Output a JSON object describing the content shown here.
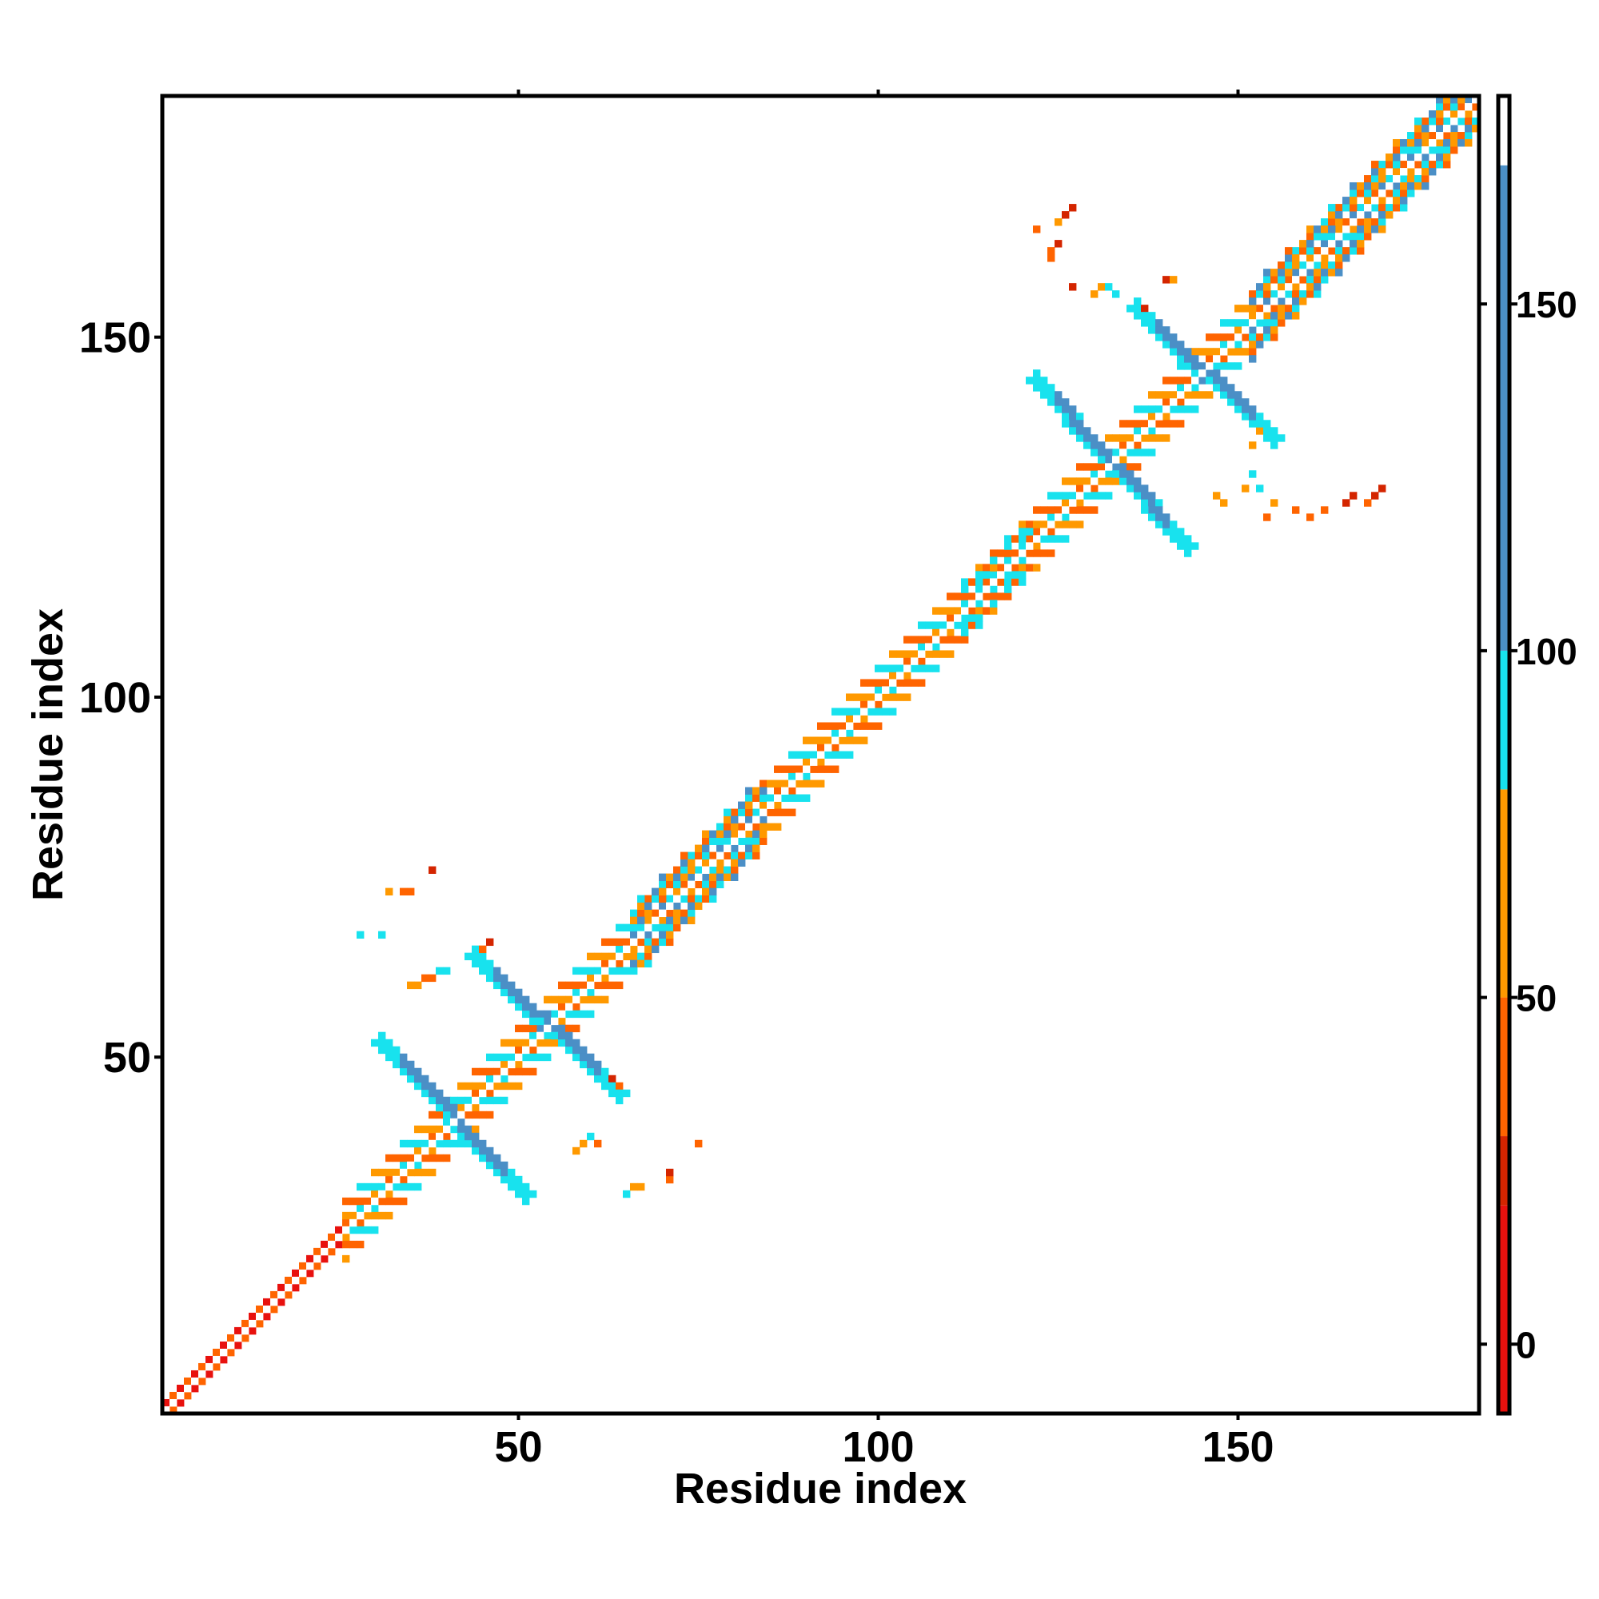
{
  "chart_data": {
    "type": "heatmap",
    "title": "",
    "xlabel": "Residue index",
    "ylabel": "Residue index",
    "xlim": [
      1,
      183
    ],
    "ylim": [
      1,
      183
    ],
    "x_ticks": [
      50,
      100,
      150
    ],
    "x_tick_labels": [
      "50",
      "100",
      "150"
    ],
    "y_ticks": [
      50,
      100,
      150
    ],
    "y_tick_labels": [
      "50",
      "100",
      "150"
    ],
    "grid": false,
    "colorbar": {
      "range": [
        -10,
        180
      ],
      "ticks": [
        0,
        50,
        100,
        150
      ],
      "tick_labels": [
        "0",
        "50",
        "100",
        "150"
      ],
      "bands": [
        {
          "from": -10,
          "to": 20,
          "color": "#e8110e"
        },
        {
          "from": 20,
          "to": 30,
          "color": "#d42500"
        },
        {
          "from": 30,
          "to": 50,
          "color": "#ff6400"
        },
        {
          "from": 50,
          "to": 80,
          "color": "#ff9900"
        },
        {
          "from": 80,
          "to": 100,
          "color": "#18e2ee"
        },
        {
          "from": 100,
          "to": 170,
          "color": "#4b8fc6"
        },
        {
          "from": 170,
          "to": 180,
          "color": "#ffffff"
        }
      ]
    },
    "features": [
      {
        "kind": "diagonal-band",
        "from": 1,
        "to": 183,
        "halfwidth": 1,
        "values": [
          10,
          40
        ]
      },
      {
        "kind": "diagonal-band",
        "from": 26,
        "to": 183,
        "halfwidth": 4,
        "values": [
          40,
          60,
          90
        ]
      },
      {
        "kind": "helix-block",
        "from": 66,
        "to": 84,
        "halfwidth": 5,
        "values": [
          40,
          60,
          90,
          110
        ]
      },
      {
        "kind": "helix-block",
        "from": 152,
        "to": 183,
        "halfwidth": 5,
        "values": [
          40,
          60,
          90,
          110
        ]
      },
      {
        "kind": "helix-block",
        "from": 112,
        "to": 121,
        "halfwidth": 3,
        "values": [
          40,
          90
        ]
      },
      {
        "kind": "antidiagonal",
        "x1": 31,
        "y1": 52,
        "x2": 51,
        "y2": 31,
        "values": [
          120,
          90
        ]
      },
      {
        "kind": "antidiagonal",
        "x1": 44,
        "y1": 64,
        "x2": 64,
        "y2": 45,
        "values": [
          120,
          90
        ]
      },
      {
        "kind": "antidiagonal",
        "x1": 122,
        "y1": 144,
        "x2": 143,
        "y2": 121,
        "values": [
          120,
          90
        ]
      },
      {
        "kind": "antidiagonal",
        "x1": 136,
        "y1": 154,
        "x2": 155,
        "y2": 136,
        "values": [
          120,
          90
        ]
      },
      {
        "kind": "scatter-cells",
        "values": [
          [
            28,
            67,
            90
          ],
          [
            31,
            67,
            90
          ],
          [
            32,
            73,
            60
          ],
          [
            34,
            73,
            40
          ],
          [
            35,
            73,
            40
          ],
          [
            38,
            76,
            20
          ],
          [
            35,
            60,
            60
          ],
          [
            36,
            60,
            60
          ],
          [
            37,
            61,
            40
          ],
          [
            38,
            61,
            40
          ],
          [
            39,
            62,
            90
          ],
          [
            40,
            62,
            90
          ],
          [
            46,
            66,
            20
          ],
          [
            45,
            65,
            40
          ],
          [
            58,
            37,
            60
          ],
          [
            59,
            38,
            60
          ],
          [
            60,
            39,
            90
          ],
          [
            61,
            38,
            40
          ],
          [
            65,
            31,
            90
          ],
          [
            66,
            32,
            60
          ],
          [
            67,
            32,
            60
          ],
          [
            71,
            33,
            40
          ],
          [
            71,
            34,
            20
          ],
          [
            75,
            38,
            40
          ],
          [
            63,
            47,
            20
          ],
          [
            64,
            46,
            40
          ],
          [
            68,
            63,
            90
          ],
          [
            124,
            161,
            40
          ],
          [
            124,
            162,
            40
          ],
          [
            125,
            163,
            20
          ],
          [
            126,
            167,
            20
          ],
          [
            127,
            168,
            20
          ],
          [
            122,
            165,
            40
          ],
          [
            125,
            166,
            60
          ],
          [
            127,
            157,
            20
          ],
          [
            130,
            156,
            60
          ],
          [
            131,
            157,
            60
          ],
          [
            132,
            157,
            90
          ],
          [
            133,
            156,
            90
          ],
          [
            137,
            154,
            20
          ],
          [
            140,
            158,
            20
          ],
          [
            141,
            158,
            60
          ],
          [
            152,
            135,
            60
          ],
          [
            153,
            137,
            60
          ],
          [
            152,
            131,
            90
          ],
          [
            151,
            129,
            60
          ],
          [
            153,
            129,
            90
          ],
          [
            155,
            127,
            60
          ],
          [
            158,
            126,
            40
          ],
          [
            160,
            125,
            40
          ],
          [
            162,
            126,
            40
          ],
          [
            165,
            127,
            20
          ],
          [
            166,
            128,
            20
          ],
          [
            168,
            127,
            40
          ],
          [
            169,
            128,
            20
          ],
          [
            170,
            129,
            20
          ],
          [
            147,
            128,
            60
          ],
          [
            148,
            127,
            60
          ],
          [
            154,
            125,
            40
          ]
        ]
      }
    ]
  }
}
